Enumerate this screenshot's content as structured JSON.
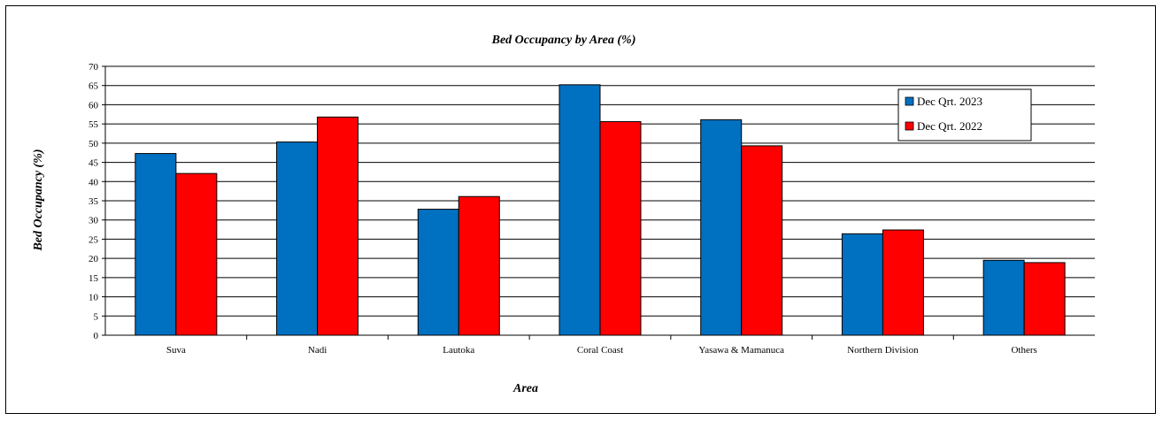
{
  "chart_data": {
    "type": "bar",
    "title": "Bed Occupancy by Area (%)",
    "xlabel": "Area",
    "ylabel": "Bed Occupancy (%)",
    "categories": [
      "Suva",
      "Nadi",
      "Lautoka",
      "Coral Coast",
      "Yasawa & Mamanuca",
      "Northern Division",
      "Others"
    ],
    "series": [
      {
        "name": "Dec Qrt. 2023",
        "color": "#0070C0",
        "values": [
          47.3,
          50.3,
          32.8,
          65.2,
          56.1,
          26.4,
          19.5
        ]
      },
      {
        "name": "Dec Qrt. 2022",
        "color": "#FF0000",
        "values": [
          42.1,
          56.8,
          36.1,
          55.6,
          49.3,
          27.4,
          18.9
        ]
      }
    ],
    "ylim": [
      0,
      70
    ],
    "ytick_step": 5,
    "grid": true,
    "legend_position": "top-right"
  }
}
